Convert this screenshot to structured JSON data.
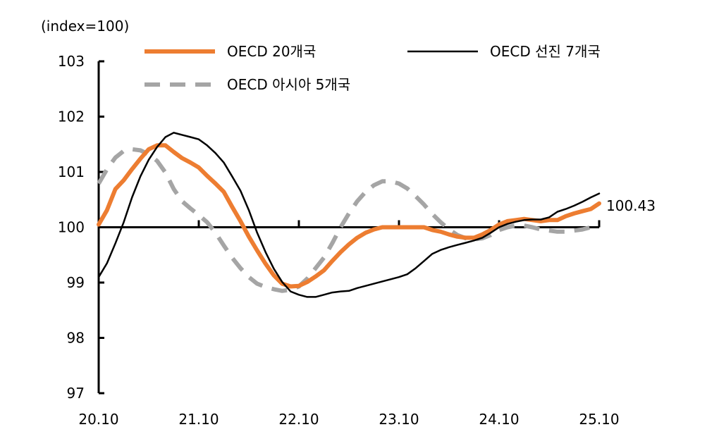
{
  "chart_data": {
    "type": "line",
    "ylabel": "(index=100)",
    "ylim": [
      97,
      103
    ],
    "yticks": [
      "97",
      "98",
      "99",
      "100",
      "101",
      "102",
      "103"
    ],
    "xtick_labels": [
      "20.10",
      "21.10",
      "22.10",
      "23.10",
      "24.10",
      "25.10"
    ],
    "reference_line": 100,
    "grid": false,
    "legend_position": "top",
    "x": [
      "20.10",
      "20.11",
      "20.12",
      "21.01",
      "21.02",
      "21.03",
      "21.04",
      "21.05",
      "21.06",
      "21.07",
      "21.08",
      "21.09",
      "21.10",
      "21.11",
      "21.12",
      "22.01",
      "22.02",
      "22.03",
      "22.04",
      "22.05",
      "22.06",
      "22.07",
      "22.08",
      "22.09",
      "22.10",
      "22.11",
      "22.12",
      "23.01",
      "23.02",
      "23.03",
      "23.04",
      "23.05",
      "23.06",
      "23.07",
      "23.08",
      "23.09",
      "23.10",
      "23.11",
      "23.12",
      "24.01",
      "24.02",
      "24.03",
      "24.04",
      "24.05",
      "24.06",
      "24.07",
      "24.08",
      "24.09",
      "24.10",
      "24.11",
      "24.12",
      "25.01",
      "25.02",
      "25.03",
      "25.04",
      "25.05",
      "25.06",
      "25.07",
      "25.08",
      "25.09",
      "25.10"
    ],
    "series": [
      {
        "name": "OECD 20개국",
        "color": "#ED7D31",
        "style": "solid-thick",
        "values": [
          100.05,
          100.31,
          100.69,
          100.85,
          101.05,
          101.24,
          101.41,
          101.48,
          101.48,
          101.36,
          101.25,
          101.17,
          101.08,
          100.93,
          100.79,
          100.64,
          100.37,
          100.11,
          99.83,
          99.58,
          99.34,
          99.13,
          98.98,
          98.93,
          98.94,
          99.01,
          99.11,
          99.22,
          99.39,
          99.55,
          99.69,
          99.81,
          99.9,
          99.96,
          100.0,
          100.0,
          100.0,
          100.0,
          100.0,
          100.0,
          99.95,
          99.92,
          99.87,
          99.83,
          99.81,
          99.81,
          99.87,
          99.95,
          100.05,
          100.11,
          100.13,
          100.15,
          100.13,
          100.11,
          100.13,
          100.13,
          100.2,
          100.25,
          100.29,
          100.33,
          100.43
        ]
      },
      {
        "name": "OECD 선진 7개국",
        "color": "#000000",
        "style": "solid-thin",
        "values": [
          99.1,
          99.35,
          99.71,
          100.09,
          100.54,
          100.92,
          101.22,
          101.45,
          101.63,
          101.71,
          101.67,
          101.63,
          101.59,
          101.48,
          101.34,
          101.17,
          100.92,
          100.66,
          100.31,
          99.9,
          99.55,
          99.25,
          99.01,
          98.84,
          98.78,
          98.74,
          98.74,
          98.78,
          98.82,
          98.84,
          98.85,
          98.9,
          98.94,
          98.98,
          99.02,
          99.06,
          99.1,
          99.15,
          99.26,
          99.39,
          99.52,
          99.59,
          99.64,
          99.68,
          99.72,
          99.76,
          99.81,
          99.9,
          100.0,
          100.06,
          100.1,
          100.13,
          100.14,
          100.14,
          100.18,
          100.28,
          100.33,
          100.39,
          100.46,
          100.54,
          100.61
        ]
      },
      {
        "name": "OECD 아시아 5개국",
        "color": "#A5A5A5",
        "style": "dashed",
        "values": [
          100.79,
          101.05,
          101.26,
          101.38,
          101.41,
          101.39,
          101.32,
          101.2,
          100.99,
          100.69,
          100.47,
          100.34,
          100.22,
          100.09,
          99.9,
          99.67,
          99.45,
          99.26,
          99.1,
          98.98,
          98.92,
          98.88,
          98.85,
          98.87,
          98.93,
          99.07,
          99.26,
          99.45,
          99.71,
          100.0,
          100.25,
          100.47,
          100.64,
          100.76,
          100.83,
          100.83,
          100.79,
          100.7,
          100.56,
          100.41,
          100.24,
          100.09,
          99.96,
          99.86,
          99.8,
          99.78,
          99.8,
          99.86,
          99.95,
          100.0,
          100.03,
          100.03,
          100.0,
          99.96,
          99.94,
          99.92,
          99.92,
          99.94,
          99.96,
          100.0,
          100.03
        ]
      }
    ],
    "annotations": [
      {
        "text": "100.43",
        "series": "OECD 20개국",
        "x": "25.10"
      }
    ]
  }
}
